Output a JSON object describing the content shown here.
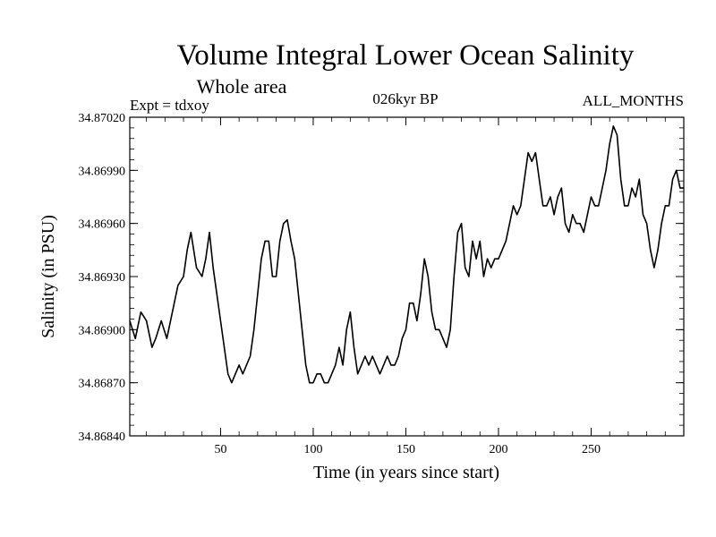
{
  "chart_data": {
    "type": "line",
    "title": "Volume Integral Lower Ocean Salinity",
    "subtitle": "Whole area",
    "annotations": {
      "experiment": "Expt = tdxoy",
      "period": "026kyr BP",
      "months": "ALL_MONTHS"
    },
    "xlabel": "Time (in years since start)",
    "ylabel": "Salinity (in PSU)",
    "xlim": [
      1,
      300
    ],
    "ylim": [
      34.8684,
      34.8702
    ],
    "xticks": [
      {
        "value": 50,
        "label": "50"
      },
      {
        "value": 100,
        "label": "100"
      },
      {
        "value": 150,
        "label": "150"
      },
      {
        "value": 200,
        "label": "200"
      },
      {
        "value": 250,
        "label": "250"
      }
    ],
    "yticks": [
      {
        "value": 34.8684,
        "label": "34.86840"
      },
      {
        "value": 34.8687,
        "label": "34.86870"
      },
      {
        "value": 34.869,
        "label": "34.86900"
      },
      {
        "value": 34.8693,
        "label": "34.86930"
      },
      {
        "value": 34.8696,
        "label": "34.86960"
      },
      {
        "value": 34.8699,
        "label": "34.86990"
      },
      {
        "value": 34.8702,
        "label": "34.87020"
      }
    ],
    "grid": false,
    "color": "#000000",
    "series": [
      {
        "x": [
          1,
          4,
          7,
          10,
          13,
          15,
          18,
          21,
          24,
          27,
          30,
          32,
          34,
          37,
          40,
          42,
          44,
          46,
          48,
          50,
          52,
          54,
          56,
          58,
          60,
          62,
          64,
          66,
          68,
          70,
          72,
          74,
          76,
          78,
          80,
          82,
          84,
          86,
          88,
          90,
          92,
          94,
          96,
          98,
          100,
          102,
          104,
          106,
          108,
          110,
          112,
          114,
          116,
          118,
          120,
          122,
          124,
          126,
          128,
          130,
          132,
          134,
          136,
          138,
          140,
          142,
          144,
          146,
          148,
          150,
          152,
          154,
          156,
          158,
          160,
          162,
          164,
          166,
          168,
          170,
          172,
          174,
          176,
          178,
          180,
          182,
          184,
          186,
          188,
          190,
          192,
          194,
          196,
          198,
          200,
          202,
          204,
          206,
          208,
          210,
          212,
          214,
          216,
          218,
          220,
          222,
          224,
          226,
          228,
          230,
          232,
          234,
          236,
          238,
          240,
          242,
          244,
          246,
          248,
          250,
          252,
          254,
          256,
          258,
          260,
          262,
          264,
          266,
          268,
          270,
          272,
          274,
          276,
          278,
          280,
          282,
          284,
          286,
          288,
          290,
          292,
          294,
          296,
          298,
          300
        ],
        "y": [
          34.86905,
          34.86895,
          34.8691,
          34.86905,
          34.8689,
          34.86895,
          34.86905,
          34.86895,
          34.8691,
          34.86925,
          34.8693,
          34.86945,
          34.86955,
          34.86935,
          34.8693,
          34.8694,
          34.86955,
          34.86935,
          34.8692,
          34.86905,
          34.8689,
          34.86875,
          34.8687,
          34.86875,
          34.8688,
          34.86875,
          34.8688,
          34.86885,
          34.869,
          34.8692,
          34.8694,
          34.8695,
          34.8695,
          34.8693,
          34.8693,
          34.8695,
          34.8696,
          34.86962,
          34.8695,
          34.8694,
          34.8692,
          34.869,
          34.8688,
          34.8687,
          34.8687,
          34.86875,
          34.86875,
          34.8687,
          34.8687,
          34.86875,
          34.8688,
          34.8689,
          34.8688,
          34.869,
          34.8691,
          34.8689,
          34.86875,
          34.8688,
          34.86885,
          34.8688,
          34.86885,
          34.8688,
          34.86875,
          34.8688,
          34.86885,
          34.8688,
          34.8688,
          34.86885,
          34.86895,
          34.869,
          34.86915,
          34.86915,
          34.86905,
          34.8692,
          34.8694,
          34.8693,
          34.8691,
          34.869,
          34.869,
          34.86895,
          34.8689,
          34.869,
          34.8693,
          34.86955,
          34.8696,
          34.86935,
          34.8693,
          34.8695,
          34.8694,
          34.8695,
          34.8693,
          34.8694,
          34.86935,
          34.8694,
          34.8694,
          34.86945,
          34.8695,
          34.8696,
          34.8697,
          34.86965,
          34.8697,
          34.86985,
          34.87,
          34.86995,
          34.87,
          34.86985,
          34.8697,
          34.8697,
          34.86975,
          34.86965,
          34.86975,
          34.8698,
          34.8696,
          34.86955,
          34.86965,
          34.8696,
          34.8696,
          34.86955,
          34.86965,
          34.86975,
          34.8697,
          34.8697,
          34.8698,
          34.8699,
          34.87005,
          34.87015,
          34.8701,
          34.86985,
          34.8697,
          34.8697,
          34.8698,
          34.86975,
          34.86985,
          34.86965,
          34.8696,
          34.86945,
          34.86935,
          34.86945,
          34.8696,
          34.8697,
          34.8697,
          34.86985,
          34.8699,
          34.8698,
          34.8698
        ]
      }
    ]
  }
}
